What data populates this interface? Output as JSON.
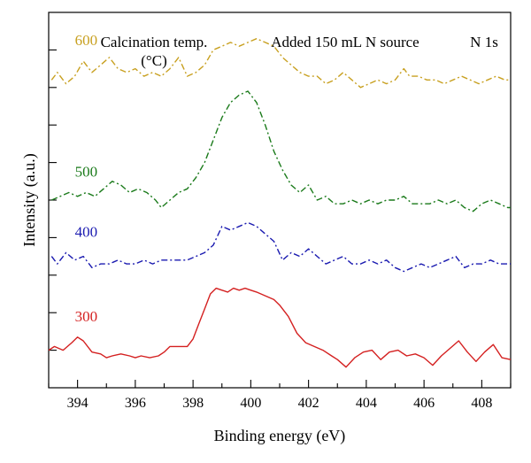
{
  "chart_data": {
    "type": "line",
    "title": "",
    "xlabel": "Binding energy (eV)",
    "ylabel": "Intensity (a.u.)",
    "xlim": [
      393,
      409
    ],
    "x_ticks": [
      394,
      396,
      398,
      400,
      402,
      404,
      406,
      408
    ],
    "y_ticks_labeled": false,
    "legend": "none",
    "annotations": {
      "left_header_line1": "Calcination temp.",
      "left_header_line2": "(°C)",
      "center_header": "Added 150 mL N source",
      "right_header": "N 1s"
    },
    "series": [
      {
        "name": "600",
        "color": "#c8a020",
        "style": "dash-dot",
        "x": [
          393.1,
          393.3,
          393.6,
          393.9,
          394.2,
          394.5,
          394.8,
          395.1,
          395.4,
          395.7,
          396.0,
          396.3,
          396.6,
          396.9,
          397.2,
          397.5,
          397.8,
          398.1,
          398.4,
          398.7,
          399.0,
          399.3,
          399.6,
          399.9,
          400.2,
          400.5,
          400.8,
          401.1,
          401.4,
          401.7,
          402.0,
          402.3,
          402.6,
          402.9,
          403.2,
          403.5,
          403.8,
          404.1,
          404.4,
          404.7,
          405.0,
          405.3,
          405.5,
          405.8,
          406.1,
          406.4,
          406.7,
          407.0,
          407.3,
          407.6,
          407.9,
          408.2,
          408.5,
          408.8,
          409.0
        ],
        "y": [
          8.2,
          8.4,
          8.1,
          8.3,
          8.7,
          8.4,
          8.6,
          8.8,
          8.5,
          8.4,
          8.5,
          8.3,
          8.4,
          8.3,
          8.5,
          8.8,
          8.3,
          8.4,
          8.6,
          9.0,
          9.1,
          9.2,
          9.1,
          9.2,
          9.3,
          9.2,
          9.1,
          8.8,
          8.6,
          8.4,
          8.3,
          8.3,
          8.1,
          8.2,
          8.4,
          8.2,
          8.0,
          8.1,
          8.2,
          8.1,
          8.2,
          8.5,
          8.3,
          8.3,
          8.2,
          8.2,
          8.1,
          8.2,
          8.3,
          8.2,
          8.1,
          8.2,
          8.3,
          8.2,
          8.2
        ]
      },
      {
        "name": "500",
        "color": "#1a7a1a",
        "style": "dash-dot",
        "x": [
          393.1,
          393.4,
          393.7,
          394.0,
          394.3,
          394.6,
          394.9,
          395.2,
          395.5,
          395.8,
          396.1,
          396.4,
          396.7,
          396.9,
          397.2,
          397.5,
          397.8,
          398.1,
          398.4,
          398.7,
          399.0,
          399.3,
          399.6,
          399.9,
          400.2,
          400.5,
          400.8,
          401.1,
          401.4,
          401.7,
          402.0,
          402.3,
          402.6,
          402.9,
          403.2,
          403.5,
          403.8,
          404.1,
          404.4,
          404.7,
          405.0,
          405.3,
          405.6,
          405.9,
          406.2,
          406.5,
          406.8,
          407.1,
          407.4,
          407.7,
          408.0,
          408.3,
          408.6,
          408.9,
          409.0
        ],
        "y": [
          5.0,
          5.1,
          5.2,
          5.1,
          5.2,
          5.1,
          5.3,
          5.5,
          5.4,
          5.2,
          5.3,
          5.2,
          5.0,
          4.8,
          5.0,
          5.2,
          5.3,
          5.6,
          6.0,
          6.6,
          7.2,
          7.6,
          7.8,
          7.9,
          7.6,
          7.0,
          6.3,
          5.8,
          5.4,
          5.2,
          5.4,
          5.0,
          5.1,
          4.9,
          4.9,
          5.0,
          4.9,
          5.0,
          4.9,
          5.0,
          5.0,
          5.1,
          4.9,
          4.9,
          4.9,
          5.0,
          4.9,
          5.0,
          4.8,
          4.7,
          4.9,
          5.0,
          4.9,
          4.8,
          4.8
        ]
      },
      {
        "name": "400",
        "color": "#1a1ab0",
        "style": "dash-dot",
        "x": [
          393.1,
          393.3,
          393.6,
          393.9,
          394.2,
          394.5,
          394.8,
          395.1,
          395.4,
          395.7,
          396.0,
          396.3,
          396.6,
          396.9,
          397.2,
          397.5,
          397.8,
          398.1,
          398.4,
          398.7,
          399.0,
          399.3,
          399.6,
          399.9,
          400.2,
          400.5,
          400.8,
          401.1,
          401.4,
          401.7,
          402.0,
          402.3,
          402.6,
          402.9,
          403.2,
          403.5,
          403.8,
          404.1,
          404.4,
          404.7,
          405.0,
          405.3,
          405.6,
          405.9,
          406.2,
          406.5,
          406.8,
          407.1,
          407.4,
          407.7,
          408.0,
          408.3,
          408.6,
          408.9,
          409.0
        ],
        "y": [
          3.5,
          3.3,
          3.6,
          3.4,
          3.5,
          3.2,
          3.3,
          3.3,
          3.4,
          3.3,
          3.3,
          3.4,
          3.3,
          3.4,
          3.4,
          3.4,
          3.4,
          3.5,
          3.6,
          3.8,
          4.3,
          4.2,
          4.3,
          4.4,
          4.3,
          4.1,
          3.9,
          3.4,
          3.6,
          3.5,
          3.7,
          3.5,
          3.3,
          3.4,
          3.5,
          3.3,
          3.3,
          3.4,
          3.3,
          3.4,
          3.2,
          3.1,
          3.2,
          3.3,
          3.2,
          3.3,
          3.4,
          3.5,
          3.2,
          3.3,
          3.3,
          3.4,
          3.3,
          3.3,
          3.3
        ]
      },
      {
        "name": "300",
        "color": "#d42020",
        "style": "solid",
        "x": [
          393.0,
          393.2,
          393.5,
          393.8,
          394.0,
          394.2,
          394.5,
          394.8,
          395.0,
          395.2,
          395.5,
          395.8,
          396.0,
          396.2,
          396.5,
          396.8,
          397.0,
          397.2,
          397.5,
          397.8,
          398.0,
          398.2,
          398.4,
          398.6,
          398.8,
          399.0,
          399.2,
          399.4,
          399.6,
          399.8,
          400.0,
          400.2,
          400.5,
          400.8,
          401.0,
          401.3,
          401.6,
          401.9,
          402.2,
          402.5,
          402.8,
          403.0,
          403.3,
          403.6,
          403.9,
          404.2,
          404.5,
          404.8,
          405.1,
          405.4,
          405.7,
          406.0,
          406.3,
          406.6,
          406.9,
          407.2,
          407.5,
          407.8,
          408.1,
          408.4,
          408.7,
          409.0
        ],
        "y": [
          1.0,
          1.1,
          1.0,
          1.2,
          1.35,
          1.25,
          0.95,
          0.9,
          0.8,
          0.85,
          0.9,
          0.85,
          0.8,
          0.85,
          0.8,
          0.85,
          0.95,
          1.1,
          1.1,
          1.1,
          1.3,
          1.7,
          2.1,
          2.5,
          2.65,
          2.6,
          2.55,
          2.65,
          2.6,
          2.65,
          2.6,
          2.55,
          2.45,
          2.35,
          2.2,
          1.9,
          1.45,
          1.2,
          1.1,
          1.0,
          0.85,
          0.75,
          0.55,
          0.8,
          0.95,
          1.0,
          0.75,
          0.95,
          1.0,
          0.85,
          0.9,
          0.8,
          0.6,
          0.85,
          1.05,
          1.25,
          0.95,
          0.7,
          0.95,
          1.15,
          0.8,
          0.75
        ]
      }
    ],
    "ylim": [
      0,
      10
    ]
  }
}
